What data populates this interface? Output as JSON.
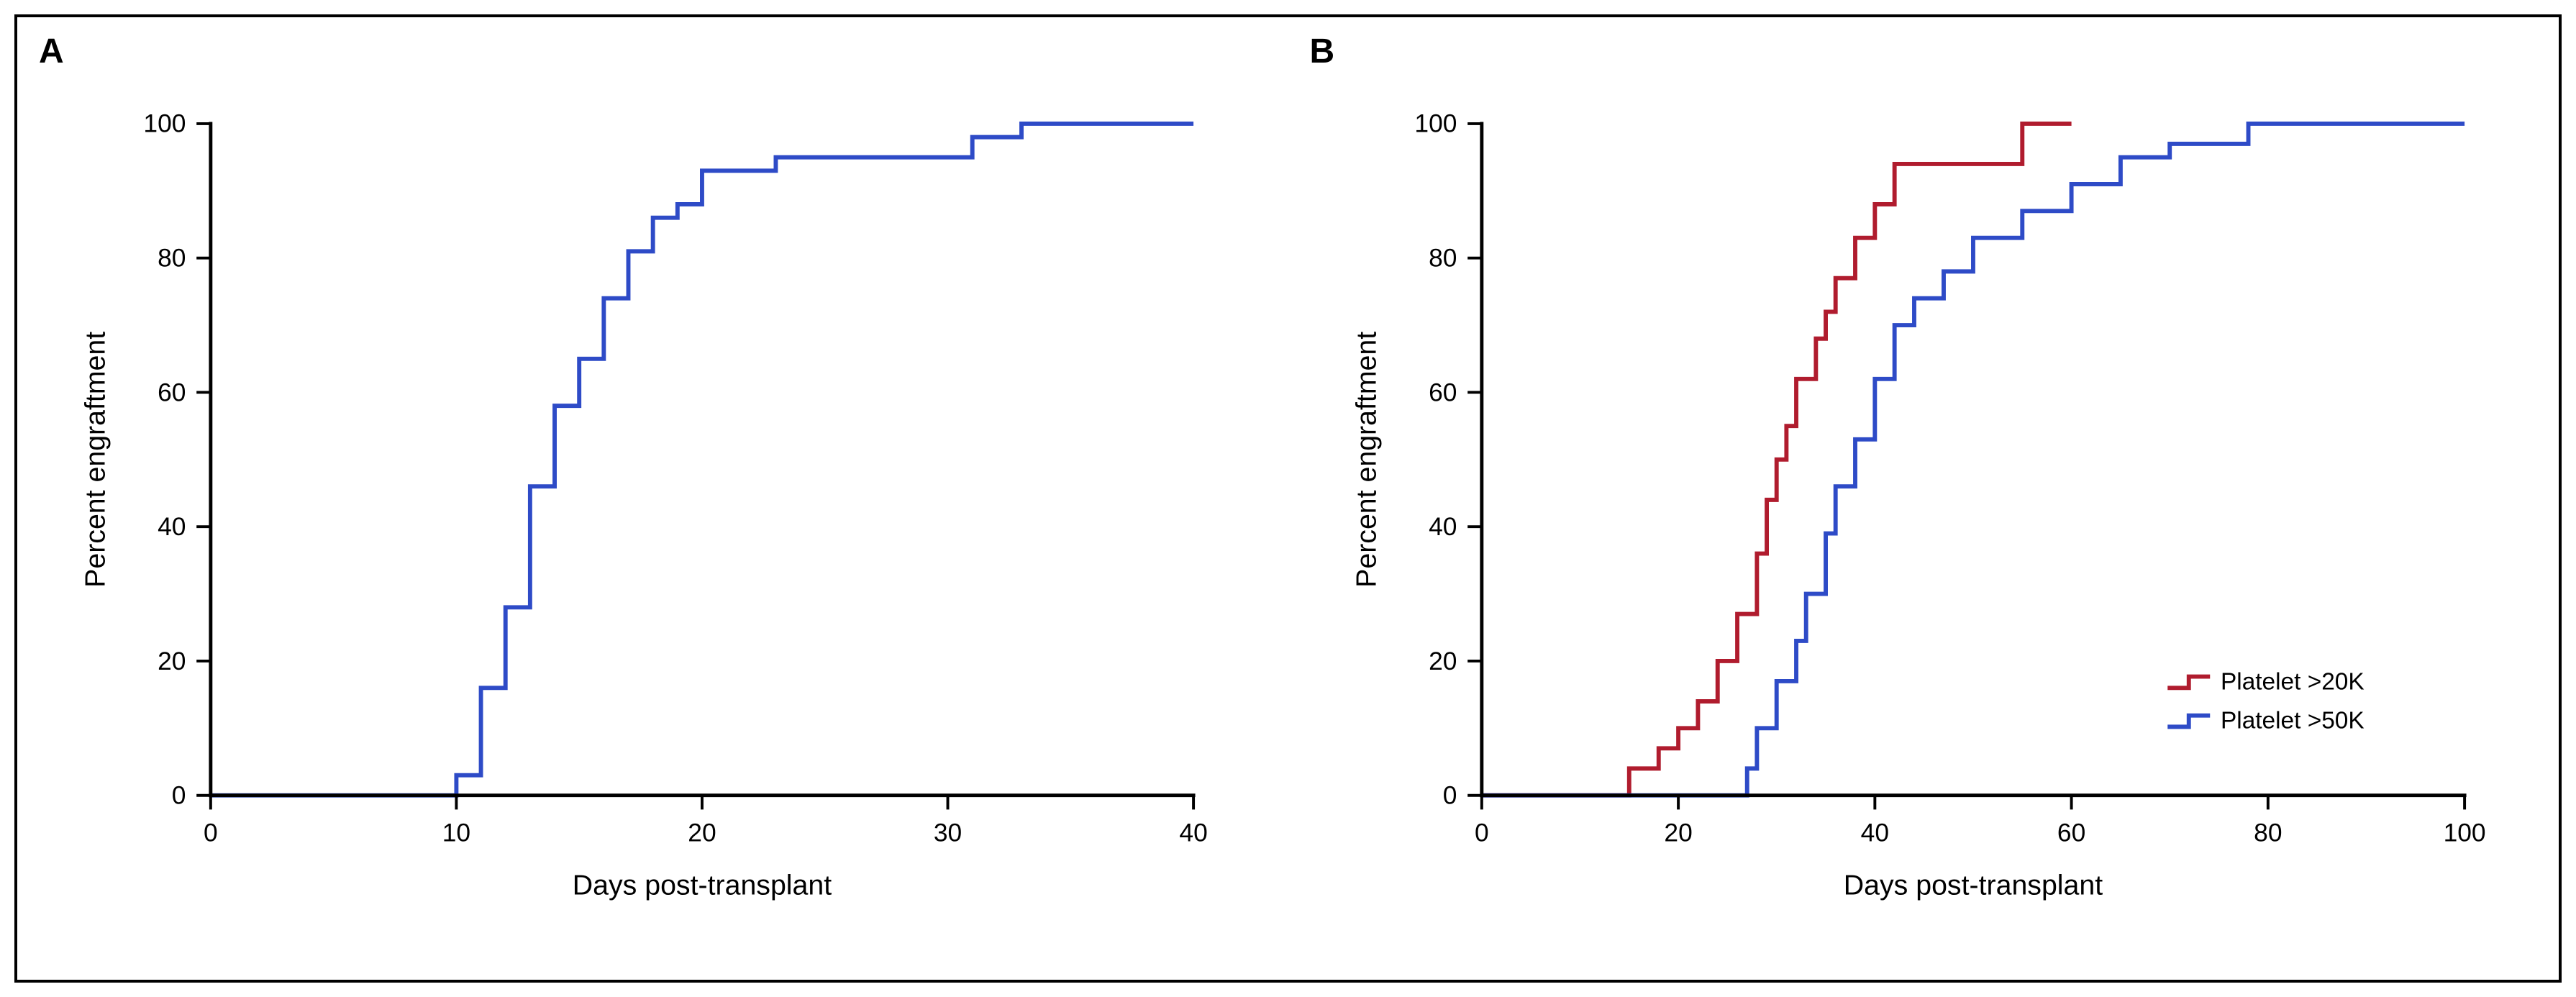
{
  "figure": {
    "border_color": "#000000",
    "background_color": "#ffffff",
    "panelA": {
      "label": "A",
      "type": "step-line",
      "xlabel": "Days post-transplant",
      "ylabel": "Percent engraftment",
      "xlim": [
        0,
        40
      ],
      "ylim": [
        0,
        100
      ],
      "xticks": [
        0,
        10,
        20,
        30,
        40
      ],
      "yticks": [
        0,
        20,
        40,
        60,
        80,
        100
      ],
      "axis_line_width": 5,
      "tick_fontsize": 36,
      "label_fontsize": 40,
      "series": [
        {
          "name": "engraftment",
          "color": "#2e4bc7",
          "line_width": 6,
          "points": [
            [
              0,
              0
            ],
            [
              10,
              0
            ],
            [
              10,
              3
            ],
            [
              11,
              3
            ],
            [
              11,
              16
            ],
            [
              12,
              16
            ],
            [
              12,
              28
            ],
            [
              13,
              28
            ],
            [
              13,
              46
            ],
            [
              14,
              46
            ],
            [
              14,
              58
            ],
            [
              15,
              58
            ],
            [
              15,
              65
            ],
            [
              16,
              65
            ],
            [
              16,
              74
            ],
            [
              17,
              74
            ],
            [
              17,
              81
            ],
            [
              18,
              81
            ],
            [
              18,
              86
            ],
            [
              19,
              86
            ],
            [
              19,
              88
            ],
            [
              20,
              88
            ],
            [
              20,
              93
            ],
            [
              21,
              93
            ],
            [
              23,
              93
            ],
            [
              23,
              95
            ],
            [
              31,
              95
            ],
            [
              31,
              98
            ],
            [
              32,
              98
            ],
            [
              33,
              98
            ],
            [
              33,
              100
            ],
            [
              40,
              100
            ]
          ]
        }
      ]
    },
    "panelB": {
      "label": "B",
      "type": "step-line",
      "xlabel": "Days post-transplant",
      "ylabel": "Percent engraftment",
      "xlim": [
        0,
        100
      ],
      "ylim": [
        0,
        100
      ],
      "xticks": [
        0,
        20,
        40,
        60,
        80,
        100
      ],
      "yticks": [
        0,
        20,
        40,
        60,
        80,
        100
      ],
      "axis_line_width": 5,
      "tick_fontsize": 36,
      "label_fontsize": 40,
      "legend": {
        "position": "bottom-right",
        "items": [
          {
            "label": "Platelet >20K",
            "color": "#b01c2e"
          },
          {
            "label": "Platelet >50K",
            "color": "#2e4bc7"
          }
        ]
      },
      "series": [
        {
          "name": "platelet-20k",
          "color": "#b01c2e",
          "line_width": 6,
          "points": [
            [
              0,
              0
            ],
            [
              15,
              0
            ],
            [
              15,
              4
            ],
            [
              18,
              4
            ],
            [
              18,
              7
            ],
            [
              20,
              7
            ],
            [
              20,
              10
            ],
            [
              22,
              10
            ],
            [
              22,
              14
            ],
            [
              24,
              14
            ],
            [
              24,
              20
            ],
            [
              26,
              20
            ],
            [
              26,
              27
            ],
            [
              28,
              27
            ],
            [
              28,
              36
            ],
            [
              29,
              36
            ],
            [
              29,
              44
            ],
            [
              30,
              44
            ],
            [
              30,
              50
            ],
            [
              31,
              50
            ],
            [
              31,
              55
            ],
            [
              32,
              55
            ],
            [
              32,
              62
            ],
            [
              34,
              62
            ],
            [
              34,
              68
            ],
            [
              35,
              68
            ],
            [
              35,
              72
            ],
            [
              36,
              72
            ],
            [
              36,
              77
            ],
            [
              38,
              77
            ],
            [
              38,
              83
            ],
            [
              40,
              83
            ],
            [
              40,
              88
            ],
            [
              42,
              88
            ],
            [
              42,
              94
            ],
            [
              55,
              94
            ],
            [
              55,
              100
            ],
            [
              60,
              100
            ]
          ]
        },
        {
          "name": "platelet-50k",
          "color": "#2e4bc7",
          "line_width": 6,
          "points": [
            [
              0,
              0
            ],
            [
              27,
              0
            ],
            [
              27,
              4
            ],
            [
              28,
              4
            ],
            [
              28,
              10
            ],
            [
              30,
              10
            ],
            [
              30,
              17
            ],
            [
              32,
              17
            ],
            [
              32,
              23
            ],
            [
              33,
              23
            ],
            [
              33,
              30
            ],
            [
              35,
              30
            ],
            [
              35,
              39
            ],
            [
              36,
              39
            ],
            [
              36,
              46
            ],
            [
              38,
              46
            ],
            [
              38,
              53
            ],
            [
              40,
              53
            ],
            [
              40,
              62
            ],
            [
              42,
              62
            ],
            [
              42,
              70
            ],
            [
              44,
              70
            ],
            [
              44,
              74
            ],
            [
              47,
              74
            ],
            [
              47,
              78
            ],
            [
              50,
              78
            ],
            [
              50,
              83
            ],
            [
              55,
              83
            ],
            [
              55,
              87
            ],
            [
              60,
              87
            ],
            [
              60,
              91
            ],
            [
              65,
              91
            ],
            [
              65,
              95
            ],
            [
              70,
              95
            ],
            [
              70,
              97
            ],
            [
              78,
              97
            ],
            [
              78,
              100
            ],
            [
              100,
              100
            ]
          ]
        }
      ]
    }
  }
}
